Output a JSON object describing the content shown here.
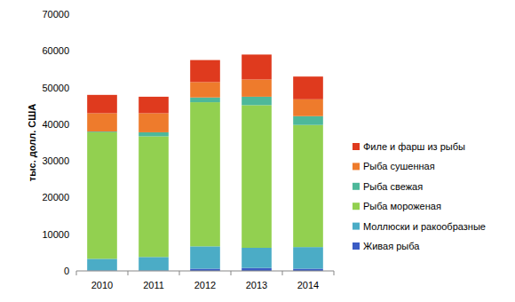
{
  "chart_data": {
    "type": "bar",
    "stacked": true,
    "grid": false,
    "legend": "right",
    "y_label": "тыс. долл. США",
    "categories": [
      "2010",
      "2011",
      "2012",
      "2013",
      "2014"
    ],
    "ylim": [
      0,
      70000
    ],
    "yticks": [
      0,
      10000,
      20000,
      30000,
      40000,
      50000,
      60000,
      70000
    ],
    "series": [
      {
        "name": "Живая рыба",
        "color": "#3b5cc4",
        "values": [
          100,
          100,
          600,
          800,
          600
        ]
      },
      {
        "name": "Моллюски и ракообразные",
        "color": "#4bacc6",
        "values": [
          3200,
          3700,
          6100,
          5500,
          5900
        ]
      },
      {
        "name": "Рыба мороженая",
        "color": "#92d050",
        "values": [
          34500,
          32900,
          39300,
          38900,
          33300
        ]
      },
      {
        "name": "Рыба свежая",
        "color": "#4db89a",
        "values": [
          200,
          1100,
          1300,
          2300,
          2400
        ]
      },
      {
        "name": "Рыба сушенная",
        "color": "#ee7b2c",
        "values": [
          5000,
          5200,
          4200,
          4700,
          4600
        ]
      },
      {
        "name": "Филе и фарш из рыбы",
        "color": "#df3a1e",
        "values": [
          5000,
          4500,
          6000,
          6800,
          6200
        ]
      }
    ]
  }
}
